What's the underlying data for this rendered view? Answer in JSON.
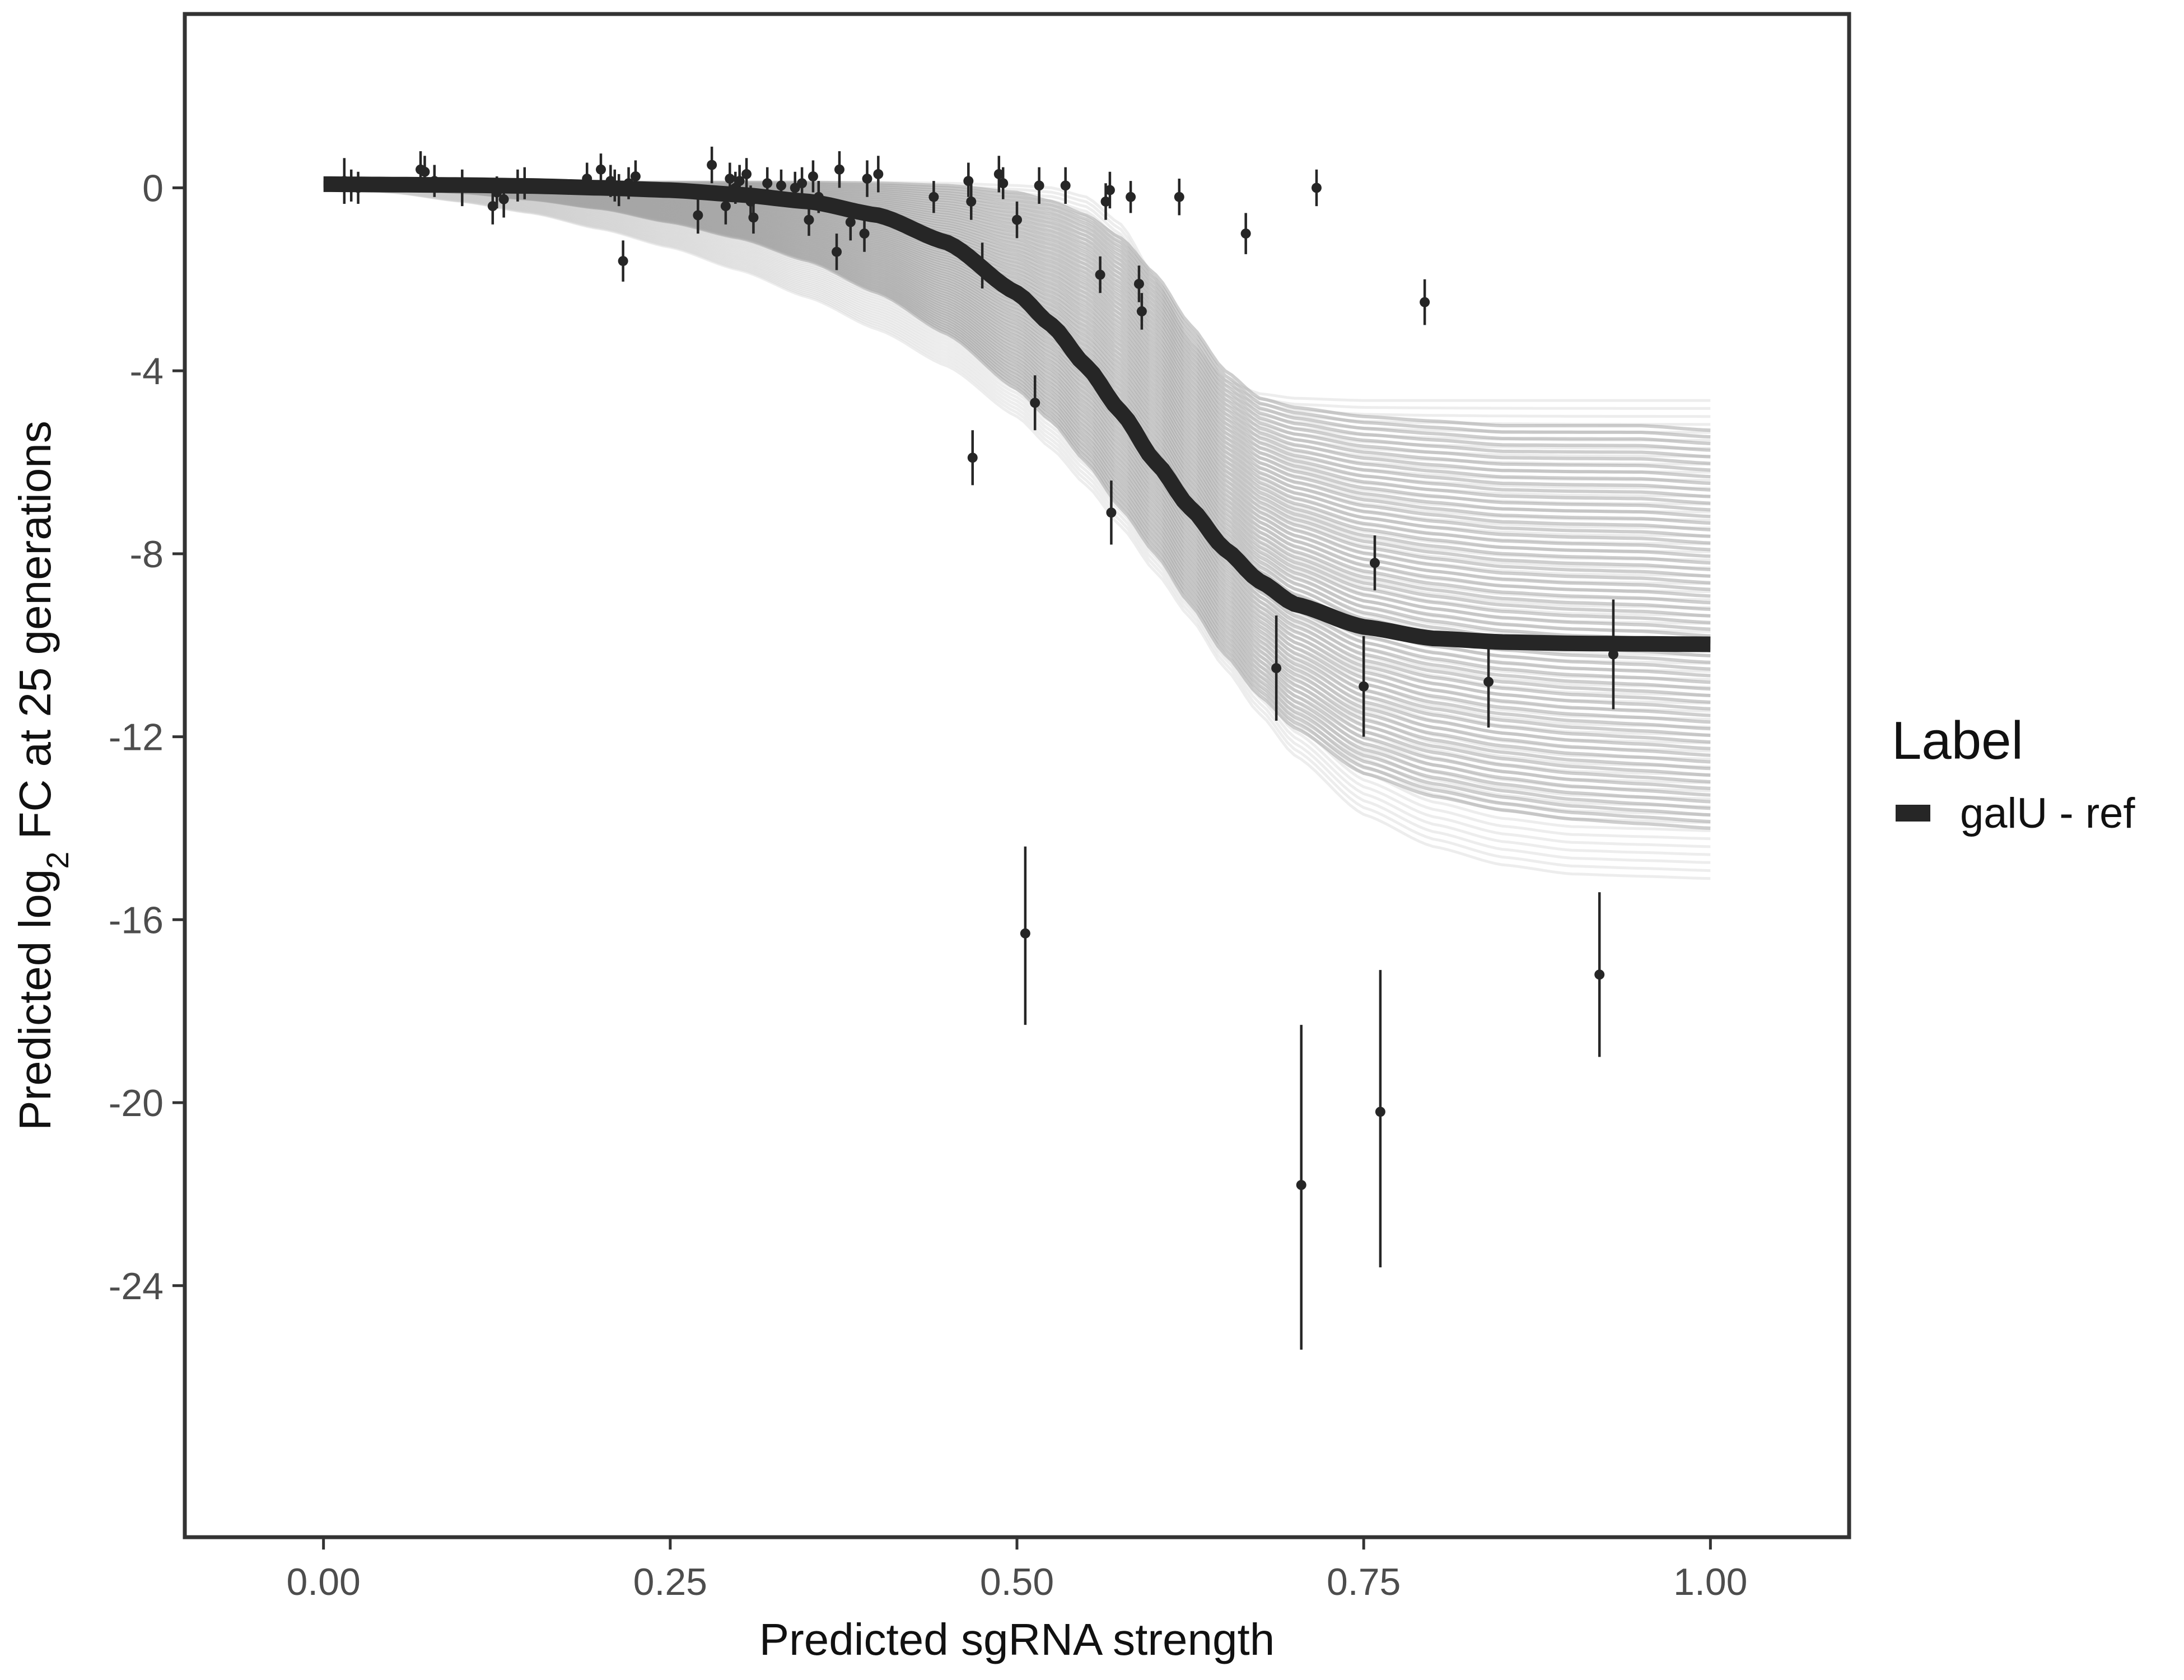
{
  "chart_data": {
    "type": "line",
    "xlabel": "Predicted sgRNA strength",
    "ylabel_parts": {
      "prefix": "Predicted  log",
      "subscript": "2",
      "suffix": " FC at 25 generations"
    },
    "xlim": [
      -0.1,
      1.1
    ],
    "ylim": [
      -29.5,
      3.8
    ],
    "x_ticks": [
      0,
      0.25,
      0.5,
      0.75,
      1.0
    ],
    "x_tick_labels": [
      "0.00",
      "0.25",
      "0.50",
      "0.75",
      "1.00"
    ],
    "y_ticks": [
      0,
      -4,
      -8,
      -12,
      -16,
      -20,
      -24
    ],
    "y_tick_labels": [
      "0",
      "-4",
      "-8",
      "-12",
      "-16",
      "-20",
      "-24"
    ],
    "grid": false,
    "legend": {
      "title": "Label",
      "position": "right",
      "entries": [
        {
          "label": "galU - ref",
          "color": "#262626"
        }
      ]
    },
    "fit_curve": {
      "name": "galU - ref",
      "color": "#262626",
      "x": [
        0.0,
        0.05,
        0.1,
        0.15,
        0.2,
        0.25,
        0.3,
        0.35,
        0.4,
        0.45,
        0.5,
        0.525,
        0.55,
        0.575,
        0.6,
        0.625,
        0.65,
        0.675,
        0.7,
        0.75,
        0.8,
        0.85,
        0.9,
        0.95,
        1.0
      ],
      "y": [
        0.08,
        0.07,
        0.06,
        0.04,
        0.0,
        -0.05,
        -0.15,
        -0.3,
        -0.6,
        -1.2,
        -2.3,
        -3.0,
        -3.9,
        -4.9,
        -6.0,
        -7.0,
        -7.9,
        -8.6,
        -9.1,
        -9.6,
        -9.85,
        -9.93,
        -9.96,
        -9.97,
        -9.98
      ]
    },
    "posterior_band": {
      "color": "#a6a6a6",
      "x": [
        0.0,
        0.05,
        0.1,
        0.15,
        0.2,
        0.25,
        0.3,
        0.35,
        0.4,
        0.45,
        0.5,
        0.525,
        0.55,
        0.575,
        0.6,
        0.625,
        0.65,
        0.675,
        0.7,
        0.75,
        0.8,
        0.85,
        0.9,
        0.95,
        1.0
      ],
      "upper": [
        0.12,
        0.12,
        0.12,
        0.12,
        0.12,
        0.12,
        0.12,
        0.12,
        0.1,
        0.05,
        -0.1,
        -0.3,
        -0.6,
        -1.1,
        -1.9,
        -3.0,
        -4.0,
        -4.6,
        -4.8,
        -5.0,
        -5.1,
        -5.2,
        -5.2,
        -5.2,
        -5.3
      ],
      "lower": [
        0.05,
        0.0,
        -0.1,
        -0.25,
        -0.45,
        -0.75,
        -1.1,
        -1.6,
        -2.3,
        -3.2,
        -4.4,
        -5.1,
        -6.0,
        -7.0,
        -8.0,
        -9.1,
        -10.2,
        -11.1,
        -11.8,
        -12.8,
        -13.3,
        -13.6,
        -13.8,
        -13.9,
        -14.0
      ]
    },
    "faint_curves": {
      "color": "#cccccc",
      "upper_example": [
        0.12,
        0.12,
        0.12,
        0.12,
        0.12,
        0.12,
        0.12,
        0.12,
        0.12,
        0.1,
        0.05,
        0.0,
        -0.2,
        -0.8,
        -2.0,
        -3.4,
        -4.2,
        -4.5,
        -4.6,
        -4.65,
        -4.65,
        -4.65,
        -4.65,
        -4.65,
        -4.65
      ],
      "lower_example": [
        0.02,
        -0.1,
        -0.3,
        -0.55,
        -0.9,
        -1.3,
        -1.8,
        -2.4,
        -3.1,
        -3.9,
        -5.0,
        -5.7,
        -6.5,
        -7.4,
        -8.4,
        -9.4,
        -10.5,
        -11.5,
        -12.4,
        -13.7,
        -14.4,
        -14.8,
        -15.0,
        -15.05,
        -15.1
      ]
    },
    "observations": [
      {
        "x": 0.015,
        "y": 0.15,
        "lo": -0.35,
        "hi": 0.65
      },
      {
        "x": 0.02,
        "y": 0.05,
        "lo": -0.3,
        "hi": 0.4
      },
      {
        "x": 0.025,
        "y": 0.0,
        "lo": -0.35,
        "hi": 0.35
      },
      {
        "x": 0.07,
        "y": 0.4,
        "lo": 0.05,
        "hi": 0.8
      },
      {
        "x": 0.073,
        "y": 0.35,
        "lo": 0.0,
        "hi": 0.7
      },
      {
        "x": 0.08,
        "y": 0.15,
        "lo": -0.2,
        "hi": 0.5
      },
      {
        "x": 0.1,
        "y": 0.0,
        "lo": -0.4,
        "hi": 0.4
      },
      {
        "x": 0.122,
        "y": -0.4,
        "lo": -0.8,
        "hi": 0.0
      },
      {
        "x": 0.125,
        "y": -0.1,
        "lo": -0.45,
        "hi": 0.25
      },
      {
        "x": 0.13,
        "y": -0.25,
        "lo": -0.65,
        "hi": 0.15
      },
      {
        "x": 0.14,
        "y": 0.05,
        "lo": -0.3,
        "hi": 0.4
      },
      {
        "x": 0.145,
        "y": 0.1,
        "lo": -0.25,
        "hi": 0.45
      },
      {
        "x": 0.19,
        "y": 0.2,
        "lo": -0.15,
        "hi": 0.55
      },
      {
        "x": 0.2,
        "y": 0.4,
        "lo": 0.05,
        "hi": 0.75
      },
      {
        "x": 0.207,
        "y": 0.15,
        "lo": -0.2,
        "hi": 0.5
      },
      {
        "x": 0.21,
        "y": 0.05,
        "lo": -0.3,
        "hi": 0.4
      },
      {
        "x": 0.213,
        "y": -0.05,
        "lo": -0.4,
        "hi": 0.3
      },
      {
        "x": 0.216,
        "y": -1.6,
        "lo": -2.05,
        "hi": -1.15
      },
      {
        "x": 0.22,
        "y": 0.1,
        "lo": -0.25,
        "hi": 0.45
      },
      {
        "x": 0.225,
        "y": 0.25,
        "lo": -0.1,
        "hi": 0.6
      },
      {
        "x": 0.27,
        "y": -0.6,
        "lo": -1.0,
        "hi": -0.2
      },
      {
        "x": 0.28,
        "y": 0.5,
        "lo": 0.1,
        "hi": 0.9
      },
      {
        "x": 0.29,
        "y": -0.4,
        "lo": -0.8,
        "hi": 0.0
      },
      {
        "x": 0.293,
        "y": 0.2,
        "lo": -0.15,
        "hi": 0.55
      },
      {
        "x": 0.297,
        "y": 0.0,
        "lo": -0.35,
        "hi": 0.35
      },
      {
        "x": 0.3,
        "y": 0.15,
        "lo": -0.2,
        "hi": 0.5
      },
      {
        "x": 0.305,
        "y": 0.3,
        "lo": -0.05,
        "hi": 0.65
      },
      {
        "x": 0.308,
        "y": -0.3,
        "lo": -0.65,
        "hi": 0.05
      },
      {
        "x": 0.31,
        "y": -0.65,
        "lo": -1.0,
        "hi": -0.3
      },
      {
        "x": 0.32,
        "y": 0.1,
        "lo": -0.25,
        "hi": 0.45
      },
      {
        "x": 0.33,
        "y": 0.05,
        "lo": -0.3,
        "hi": 0.4
      },
      {
        "x": 0.34,
        "y": 0.0,
        "lo": -0.35,
        "hi": 0.35
      },
      {
        "x": 0.345,
        "y": 0.1,
        "lo": -0.25,
        "hi": 0.45
      },
      {
        "x": 0.35,
        "y": -0.7,
        "lo": -1.05,
        "hi": -0.35
      },
      {
        "x": 0.353,
        "y": 0.25,
        "lo": -0.1,
        "hi": 0.6
      },
      {
        "x": 0.357,
        "y": -0.2,
        "lo": -0.55,
        "hi": 0.15
      },
      {
        "x": 0.37,
        "y": -1.4,
        "lo": -1.8,
        "hi": -1.0
      },
      {
        "x": 0.372,
        "y": 0.4,
        "lo": 0.0,
        "hi": 0.8
      },
      {
        "x": 0.38,
        "y": -0.75,
        "lo": -1.15,
        "hi": -0.35
      },
      {
        "x": 0.39,
        "y": -1.0,
        "lo": -1.4,
        "hi": -0.6
      },
      {
        "x": 0.392,
        "y": 0.2,
        "lo": -0.2,
        "hi": 0.6
      },
      {
        "x": 0.4,
        "y": 0.3,
        "lo": -0.1,
        "hi": 0.7
      },
      {
        "x": 0.44,
        "y": -0.2,
        "lo": -0.55,
        "hi": 0.15
      },
      {
        "x": 0.465,
        "y": 0.15,
        "lo": -0.2,
        "hi": 0.55
      },
      {
        "x": 0.467,
        "y": -0.3,
        "lo": -0.7,
        "hi": 0.1
      },
      {
        "x": 0.468,
        "y": -5.9,
        "lo": -6.5,
        "hi": -5.3
      },
      {
        "x": 0.475,
        "y": -1.7,
        "lo": -2.2,
        "hi": -1.2
      },
      {
        "x": 0.487,
        "y": 0.3,
        "lo": -0.1,
        "hi": 0.7
      },
      {
        "x": 0.49,
        "y": 0.1,
        "lo": -0.25,
        "hi": 0.45
      },
      {
        "x": 0.5,
        "y": -0.7,
        "lo": -1.1,
        "hi": -0.3
      },
      {
        "x": 0.506,
        "y": -16.3,
        "lo": -18.3,
        "hi": -14.4
      },
      {
        "x": 0.513,
        "y": -4.7,
        "lo": -5.3,
        "hi": -4.1
      },
      {
        "x": 0.516,
        "y": 0.05,
        "lo": -0.35,
        "hi": 0.45
      },
      {
        "x": 0.535,
        "y": 0.05,
        "lo": -0.35,
        "hi": 0.45
      },
      {
        "x": 0.56,
        "y": -1.9,
        "lo": -2.3,
        "hi": -1.5
      },
      {
        "x": 0.564,
        "y": -0.3,
        "lo": -0.7,
        "hi": 0.1
      },
      {
        "x": 0.567,
        "y": -0.05,
        "lo": -0.45,
        "hi": 0.35
      },
      {
        "x": 0.568,
        "y": -7.1,
        "lo": -7.8,
        "hi": -6.4
      },
      {
        "x": 0.582,
        "y": -0.2,
        "lo": -0.55,
        "hi": 0.15
      },
      {
        "x": 0.588,
        "y": -2.1,
        "lo": -2.5,
        "hi": -1.7
      },
      {
        "x": 0.59,
        "y": -2.7,
        "lo": -3.1,
        "hi": -2.3
      },
      {
        "x": 0.617,
        "y": -0.2,
        "lo": -0.6,
        "hi": 0.2
      },
      {
        "x": 0.665,
        "y": -1.0,
        "lo": -1.45,
        "hi": -0.55
      },
      {
        "x": 0.687,
        "y": -10.5,
        "lo": -11.65,
        "hi": -9.35
      },
      {
        "x": 0.705,
        "y": -21.8,
        "lo": -25.4,
        "hi": -18.3
      },
      {
        "x": 0.716,
        "y": 0.0,
        "lo": -0.4,
        "hi": 0.4
      },
      {
        "x": 0.75,
        "y": -10.9,
        "lo": -12.0,
        "hi": -9.8
      },
      {
        "x": 0.758,
        "y": -8.2,
        "lo": -8.8,
        "hi": -7.6
      },
      {
        "x": 0.762,
        "y": -20.2,
        "lo": -23.6,
        "hi": -17.1
      },
      {
        "x": 0.794,
        "y": -2.5,
        "lo": -3.0,
        "hi": -2.0
      },
      {
        "x": 0.84,
        "y": -10.8,
        "lo": -11.8,
        "hi": -9.8
      },
      {
        "x": 0.92,
        "y": -17.2,
        "lo": -19.0,
        "hi": -15.4
      },
      {
        "x": 0.93,
        "y": -10.2,
        "lo": -11.4,
        "hi": -9.0
      }
    ]
  }
}
